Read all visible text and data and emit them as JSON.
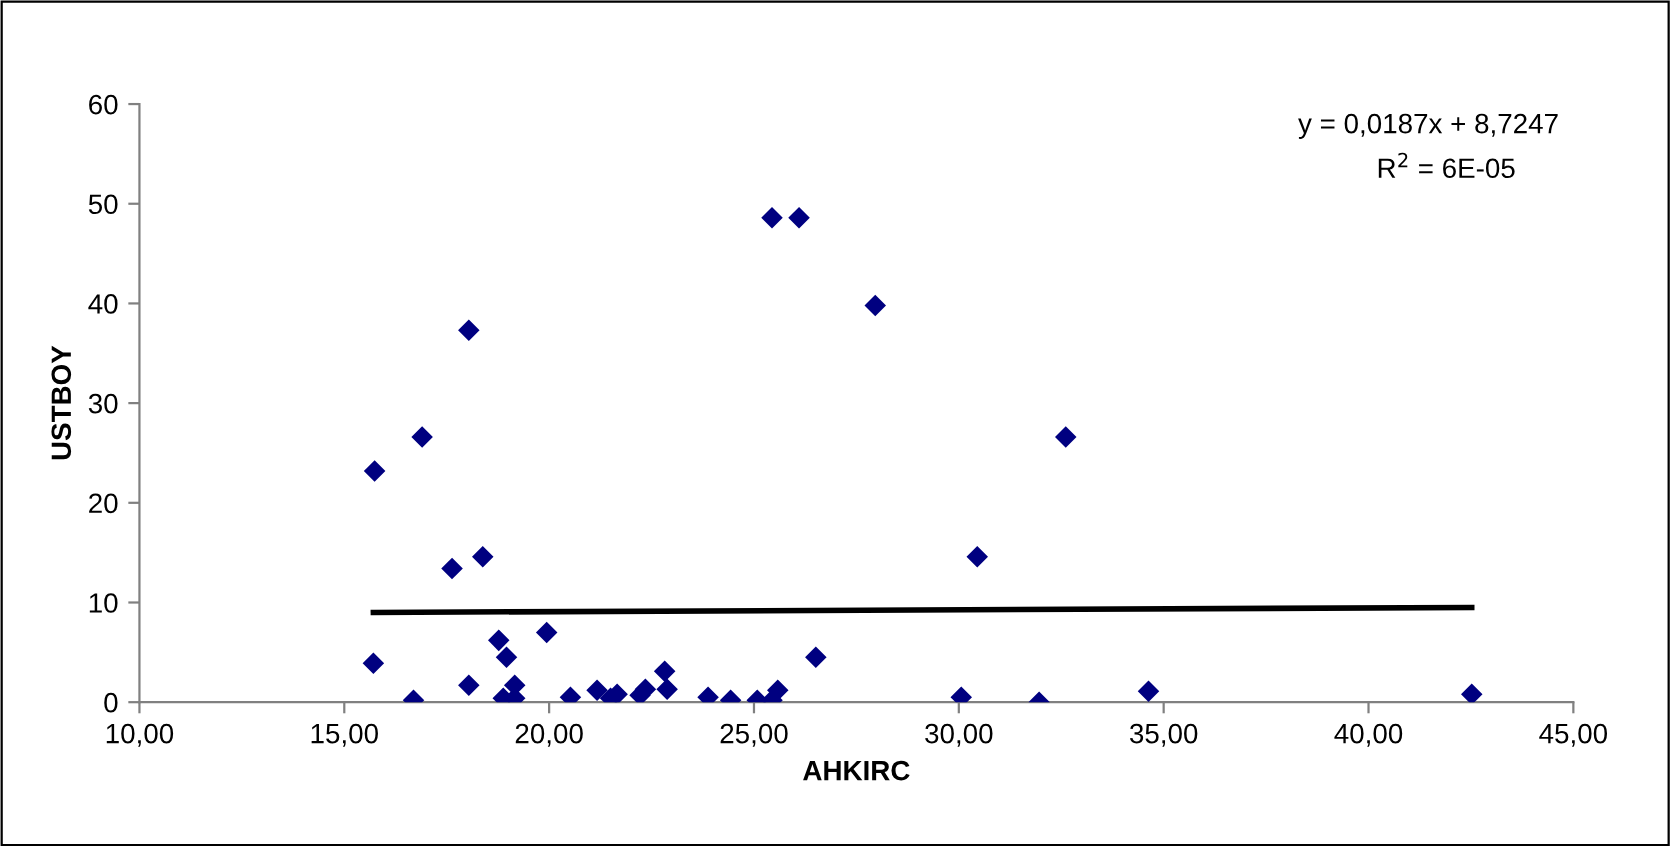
{
  "chart_data": {
    "type": "scatter",
    "xlabel": "AHKIRC",
    "ylabel": "USTBOY",
    "annotations": [
      "y = 0,0187x + 8,7247",
      "R$^{2}$ = 6E-05"
    ],
    "xlim": [
      10,
      45
    ],
    "xticks": [
      {
        "value": 10,
        "label": "10,00"
      },
      {
        "value": 15,
        "label": "15,00"
      },
      {
        "value": 20,
        "label": "20,00"
      },
      {
        "value": 25,
        "label": "25,00"
      },
      {
        "value": 30,
        "label": "30,00"
      },
      {
        "value": 35,
        "label": "35,00"
      },
      {
        "value": 40,
        "label": "40,00"
      },
      {
        "value": 45,
        "label": "45,00"
      }
    ],
    "ylim": [
      0,
      60
    ],
    "yticks": [
      0,
      10,
      20,
      30,
      40,
      50,
      60
    ],
    "grid": false,
    "legend": false,
    "series": [
      {
        "marker": "diamond",
        "color": "#000080",
        "x": [
          15.71,
          15.74,
          16.69,
          16.9,
          17.63,
          18.04,
          18.04,
          18.38,
          18.77,
          18.96,
          18.88,
          19.16,
          19.16,
          19.94,
          20.52,
          21.17,
          21.5,
          21.66,
          22.22,
          22.35,
          22.82,
          22.88,
          23.88,
          24.43,
          25.08,
          25.44,
          25.44,
          25.58,
          26.1,
          26.51,
          27.96,
          30.45,
          30.06,
          32.61,
          31.96,
          34.63,
          42.52
        ],
        "values": [
          3.9,
          23.2,
          0.2,
          26.6,
          13.4,
          37.3,
          1.7,
          14.6,
          6.2,
          4.5,
          0.4,
          1.7,
          0.4,
          7.0,
          0.5,
          1.2,
          0.4,
          0.8,
          0.7,
          1.3,
          3.1,
          1.3,
          0.5,
          0.2,
          0.2,
          48.6,
          0.2,
          1.2,
          48.6,
          4.5,
          39.8,
          14.6,
          0.5,
          26.6,
          0.0,
          1.1,
          0.8
        ]
      },
      {
        "type": "line",
        "color": "#000000",
        "x": [
          15.71,
          42.52
        ],
        "values": [
          9.0,
          9.5
        ]
      }
    ]
  }
}
